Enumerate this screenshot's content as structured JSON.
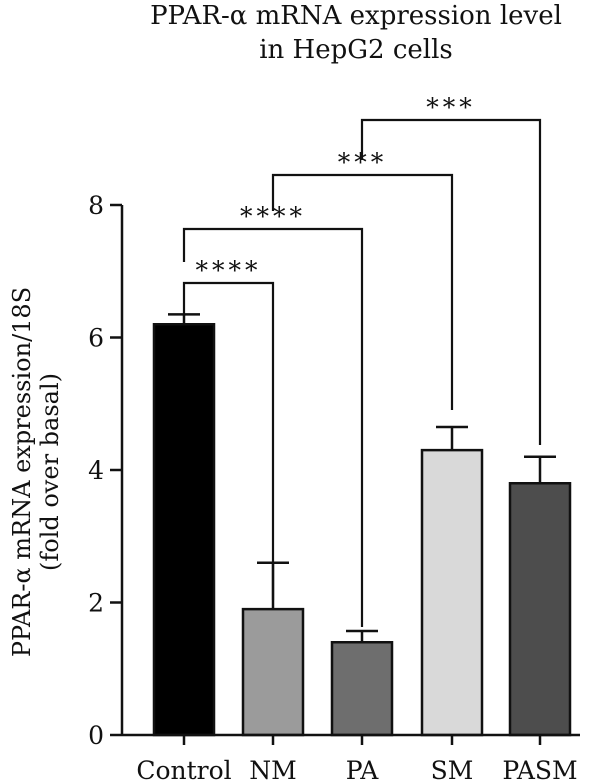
{
  "chart_data": {
    "type": "bar",
    "title_lines": [
      "PPAR-α mRNA expression level",
      "in HepG2 cells"
    ],
    "ylabel_lines": [
      "PPAR-α mRNA expression/18S",
      "(fold over basal)"
    ],
    "xlabel": "",
    "ylim": [
      0,
      8
    ],
    "yticks": [
      "0",
      "2",
      "4",
      "6",
      "8"
    ],
    "categories": [
      "Control",
      "NM",
      "PA",
      "SM",
      "PASM"
    ],
    "values": [
      6.2,
      1.9,
      1.4,
      4.3,
      3.8
    ],
    "errors": [
      0.15,
      0.7,
      0.17,
      0.35,
      0.4
    ],
    "colors": [
      "#000000",
      "#9b9b9b",
      "#6e6e6e",
      "#d9d9d9",
      "#4d4d4d"
    ],
    "grid": false,
    "comparisons": [
      {
        "from": "Control",
        "to": "NM",
        "label": "****"
      },
      {
        "from": "Control",
        "to": "PA",
        "label": "****"
      },
      {
        "from": "NM",
        "to": "SM",
        "label": "***"
      },
      {
        "from": "PA",
        "to": "PASM",
        "label": "***"
      }
    ]
  }
}
